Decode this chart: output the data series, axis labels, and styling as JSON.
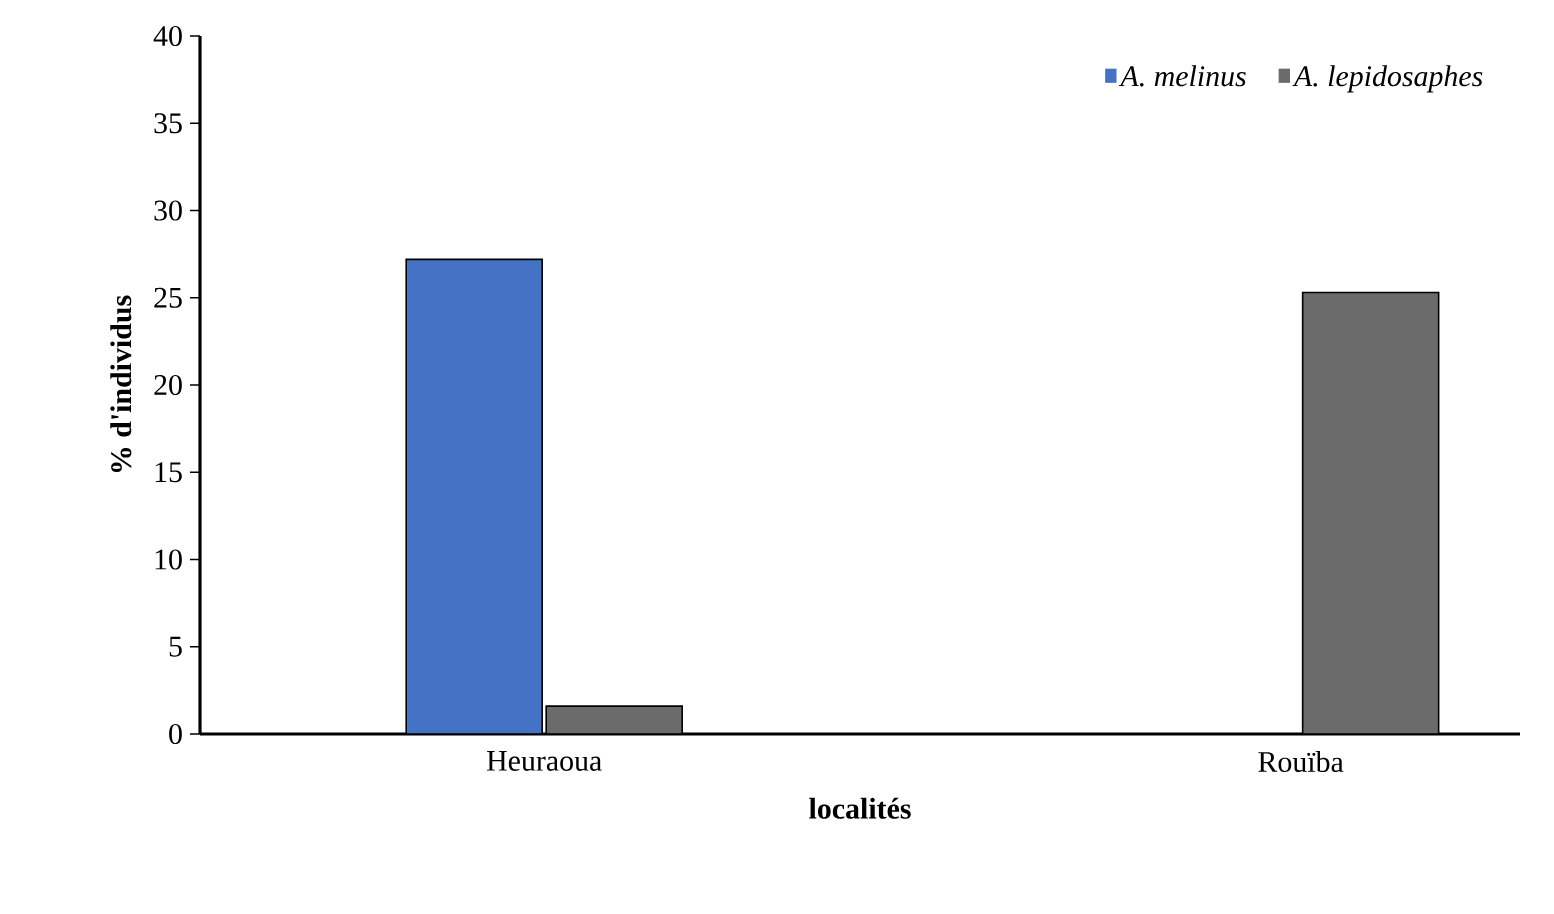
{
  "chart_data": {
    "type": "bar",
    "xlabel": "localités",
    "ylabel": "% d'individus",
    "categories": [
      "Heuraoua",
      "Rouïba"
    ],
    "series": [
      {
        "name": "A. melinus",
        "color": "#4472c4",
        "values": [
          27.2,
          0
        ]
      },
      {
        "name": "A. lepidosaphes",
        "color": "#6b6b6b",
        "values": [
          1.6,
          25.3
        ]
      }
    ],
    "ylim": [
      0,
      40
    ],
    "yticks": [
      0,
      5,
      10,
      15,
      20,
      25,
      30,
      35,
      40
    ],
    "grid": false,
    "legend": "top right"
  }
}
